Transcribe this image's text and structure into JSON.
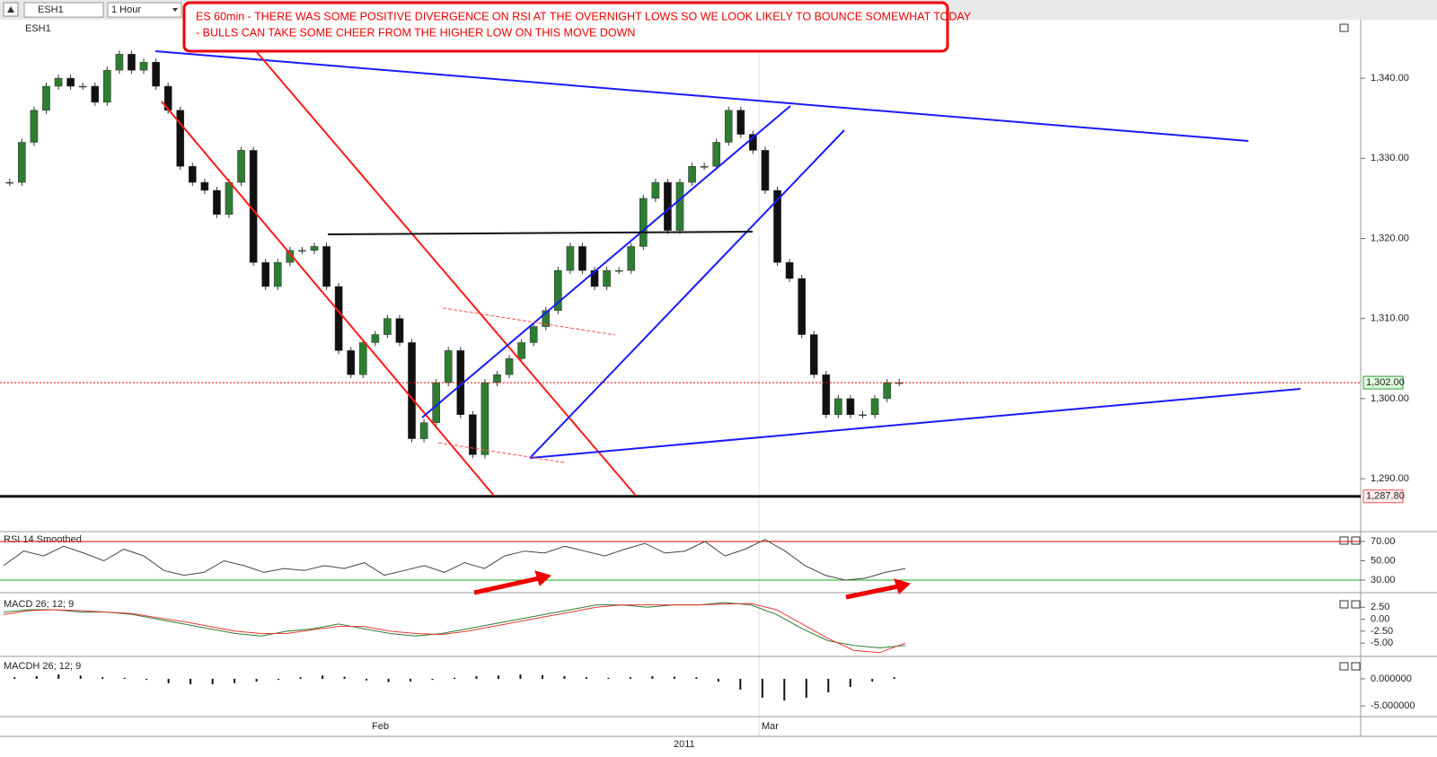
{
  "toolbar": {
    "symbol": "ESH1",
    "interval": "1 Hour",
    "chart_symbol": "ESH1"
  },
  "annotation": {
    "lines": [
      "ES 60min - THERE WAS SOME POSITIVE DIVERGENCE ON RSI AT THE OVERNIGHT LOWS SO WE LOOK LIKELY TO BOUNCE SOMEWHAT TODAY",
      "- BULLS CAN TAKE SOME CHEER FROM THE HIGHER LOW ON THIS MOVE DOWN"
    ]
  },
  "price_panel": {
    "type": "candlestick",
    "ylim": [
      1283.4,
      1347.3
    ],
    "yticks": [
      {
        "value": 1290,
        "label": "1,290.00"
      },
      {
        "value": 1300,
        "label": "1,300.00"
      },
      {
        "value": 1310,
        "label": "1,310.00"
      },
      {
        "value": 1320,
        "label": "1,320.00"
      },
      {
        "value": 1330,
        "label": "1,330.00"
      },
      {
        "value": 1340,
        "label": "1,340.00"
      }
    ],
    "up_color": "#2e7d32",
    "down_color": "#111111",
    "closes": [
      1327,
      1332,
      1336,
      1339,
      1340,
      1339,
      1339,
      1337,
      1341,
      1343,
      1341,
      1342,
      1339,
      1336,
      1329,
      1327,
      1326,
      1323,
      1327,
      1331,
      1317,
      1314,
      1317,
      1318.5,
      1318.5,
      1319,
      1314,
      1306,
      1303,
      1307,
      1308,
      1310,
      1307,
      1295,
      1297,
      1302,
      1306,
      1298,
      1293,
      1302,
      1303,
      1305,
      1307,
      1309,
      1311,
      1316,
      1319,
      1316,
      1314,
      1316,
      1316,
      1319,
      1325,
      1327,
      1321,
      1327,
      1329,
      1329,
      1332,
      1336,
      1333,
      1331,
      1326,
      1317,
      1315,
      1308,
      1303,
      1298,
      1300,
      1298,
      1298,
      1300,
      1302,
      1302
    ],
    "last_price": {
      "value": 1302,
      "label": "1,302.00"
    },
    "support_price": {
      "value": 1287.8,
      "label": "1,287.80"
    }
  },
  "rsi_panel": {
    "title": "RSI 14 Smoothed",
    "ylim": [
      19.8,
      77.4
    ],
    "yticks": [
      {
        "value": 30,
        "label": "30.00"
      },
      {
        "value": 50,
        "label": "50.00"
      },
      {
        "value": 70,
        "label": "70.00"
      }
    ],
    "values": [
      45,
      60,
      55,
      65,
      58,
      50,
      62,
      55,
      40,
      35,
      38,
      50,
      45,
      38,
      42,
      40,
      45,
      42,
      48,
      35,
      40,
      45,
      38,
      48,
      42,
      55,
      60,
      58,
      65,
      60,
      55,
      62,
      68,
      58,
      60,
      70,
      55,
      62,
      72,
      60,
      45,
      35,
      30,
      32,
      38,
      42
    ]
  },
  "macd_panel": {
    "title": "MACD 26; 12; 9",
    "ylim": [
      -7.6,
      5.0
    ],
    "yticks": [
      {
        "value": 2.5,
        "label": "2.50"
      },
      {
        "value": 0,
        "label": "0.00"
      },
      {
        "value": -2.5,
        "label": "-2.50"
      },
      {
        "value": -5,
        "label": "-5.00"
      }
    ],
    "series": [
      {
        "color": "#2e7d32",
        "values": [
          1.5,
          2,
          2,
          1.5,
          1.5,
          1,
          0,
          -1,
          -2,
          -3,
          -3.5,
          -2.5,
          -2,
          -1,
          -2,
          -3,
          -3.5,
          -3,
          -2,
          -1,
          0,
          1,
          2,
          3,
          3,
          2.5,
          3,
          3,
          3.5,
          3,
          1,
          -2,
          -4.5,
          -5.5,
          -6,
          -5.5
        ]
      },
      {
        "color": "#e53935",
        "values": [
          1,
          1.8,
          2,
          1.8,
          1.5,
          1.2,
          0.3,
          -0.5,
          -1.5,
          -2.5,
          -3,
          -3,
          -2.2,
          -1.5,
          -1.5,
          -2.5,
          -3,
          -3.2,
          -2.5,
          -1.5,
          -0.5,
          0.5,
          1.5,
          2.5,
          3,
          3,
          3,
          3,
          3.2,
          3.3,
          2,
          -1,
          -4,
          -6.5,
          -7,
          -5
        ]
      }
    ]
  },
  "macdh_panel": {
    "title": "MACDH 26; 12; 9",
    "ylim": [
      -6.8,
      3.8
    ],
    "yticks": [
      {
        "value": 0,
        "label": "0.000000"
      },
      {
        "value": -5,
        "label": "-5.000000"
      }
    ],
    "values": [
      0.3,
      0.5,
      0.8,
      0.6,
      0.3,
      0.2,
      -0.2,
      -0.8,
      -1,
      -1,
      -0.8,
      -0.5,
      -0.2,
      0.3,
      0.6,
      0.4,
      -0.3,
      -0.6,
      -0.5,
      -0.2,
      0.2,
      0.5,
      0.6,
      0.8,
      0.7,
      0.5,
      0.3,
      0.2,
      0.3,
      0.5,
      0.4,
      0.3,
      -0.5,
      -2,
      -3.5,
      -4,
      -3.5,
      -2.5,
      -1.5,
      -0.5,
      0.3
    ]
  },
  "time_axis": {
    "months": [
      "Feb",
      "Mar"
    ],
    "year": "2011"
  }
}
